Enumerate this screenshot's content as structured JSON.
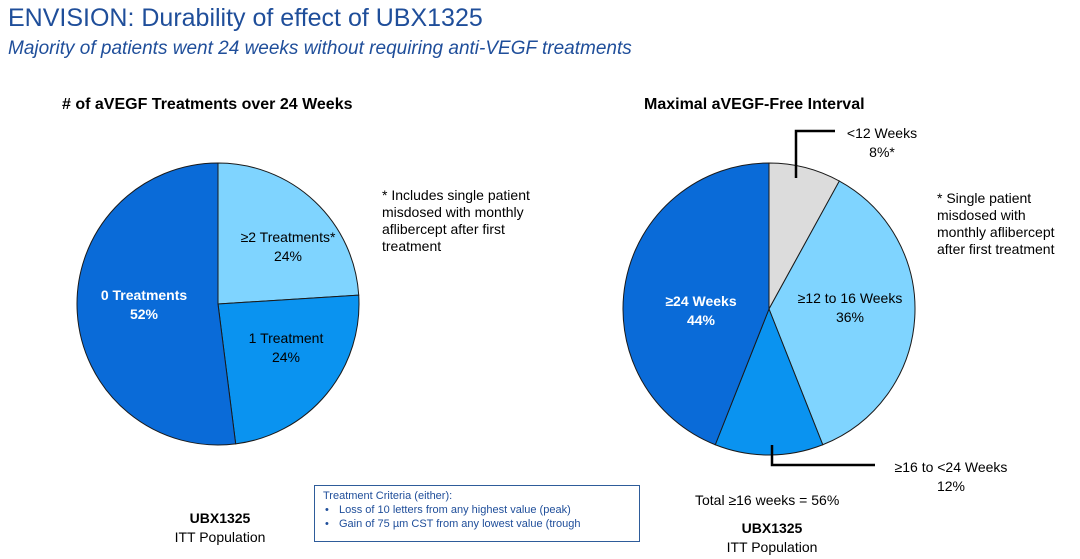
{
  "header": {
    "title": "ENVISION: Durability of effect of UBX1325",
    "subtitle": "Majority of patients went 24 weeks without requiring anti-VEGF treatments"
  },
  "chart_data": [
    {
      "type": "pie",
      "title": "# of aVEGF Treatments over 24 Weeks",
      "slices": [
        {
          "label": "≥2 Treatments*",
          "value": 24,
          "value_label": "24%",
          "color": "#7FD4FF"
        },
        {
          "label": "1 Treatment",
          "value": 24,
          "value_label": "24%",
          "color": "#0A93F0"
        },
        {
          "label": "0 Treatments",
          "value": 52,
          "value_label": "52%",
          "color": "#0A6BD8"
        }
      ],
      "footnote": "* Includes single patient misdosed with monthly aflibercept after first treatment",
      "population": {
        "drug": "UBX1325",
        "group": "ITT Population"
      }
    },
    {
      "type": "pie",
      "title": "Maximal aVEGF-Free Interval",
      "slices": [
        {
          "label": "<12 Weeks",
          "value": 8,
          "value_label": "8%*",
          "color": "#DCDCDC"
        },
        {
          "label": "≥12 to 16 Weeks",
          "value": 36,
          "value_label": "36%",
          "color": "#7FD4FF"
        },
        {
          "label": "≥16 to <24 Weeks",
          "value": 12,
          "value_label": "12%",
          "color": "#0A93F0"
        },
        {
          "label": "≥24 Weeks",
          "value": 44,
          "value_label": "44%",
          "color": "#0A6BD8"
        }
      ],
      "footnote": "* Single patient misdosed with monthly aflibercept after first treatment",
      "total_note": "Total ≥16 weeks = 56%",
      "population": {
        "drug": "UBX1325",
        "group": "ITT Population"
      }
    }
  ],
  "criteria": {
    "heading": "Treatment Criteria (either):",
    "items": [
      "Loss of 10 letters from any highest value (peak)",
      "Gain of 75 µm CST from any lowest value (trough"
    ]
  }
}
